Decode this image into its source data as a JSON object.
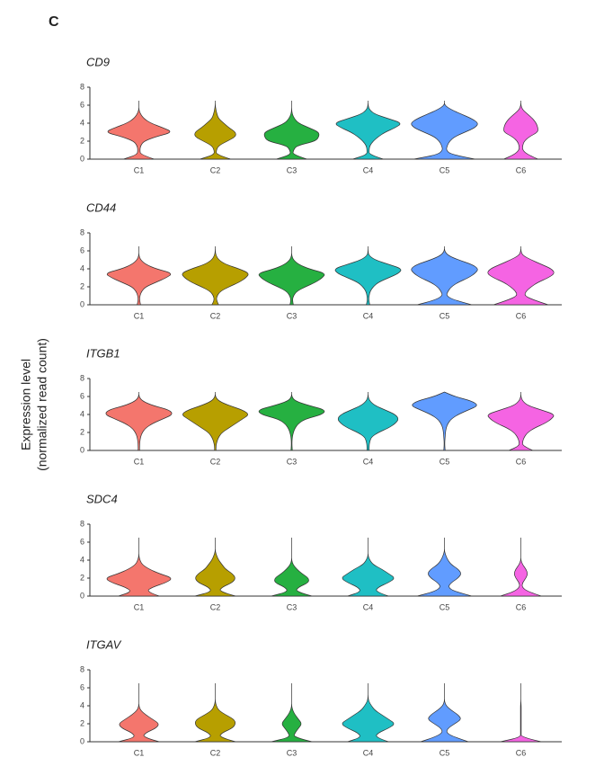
{
  "panel_label": "C",
  "y_label": [
    "Expression level",
    "(normalized read count)"
  ],
  "chart_data": [
    {
      "type": "violin",
      "title": "CD9",
      "categories": [
        "C1",
        "C2",
        "C3",
        "C4",
        "C5",
        "C6"
      ],
      "colors": [
        "#f4766d",
        "#b79f00",
        "#26b041",
        "#1fbfc4",
        "#619cff",
        "#f564e3"
      ],
      "ylim": [
        0,
        8
      ],
      "yticks": [
        0,
        2,
        4,
        6,
        8
      ],
      "density_y": [
        0,
        0.5,
        1,
        1.5,
        2,
        2.5,
        3,
        3.5,
        4,
        4.5,
        5,
        5.5,
        6,
        6.5
      ],
      "densities": [
        [
          0.45,
          0.05,
          0.03,
          0.05,
          0.15,
          0.5,
          1,
          0.7,
          0.35,
          0.15,
          0.05,
          0,
          0,
          0
        ],
        [
          0.45,
          0.03,
          0.03,
          0.1,
          0.35,
          0.6,
          0.6,
          0.4,
          0.25,
          0.1,
          0.05,
          0.02,
          0,
          0
        ],
        [
          0.45,
          0.03,
          0.05,
          0.15,
          0.7,
          0.8,
          0.8,
          0.5,
          0.2,
          0.08,
          0.02,
          0,
          0,
          0
        ],
        [
          0.45,
          0.03,
          0.03,
          0.05,
          0.15,
          0.3,
          0.5,
          0.8,
          1,
          0.6,
          0.2,
          0.04,
          0,
          0
        ],
        [
          0.9,
          0.2,
          0.05,
          0.08,
          0.15,
          0.3,
          0.6,
          0.9,
          1,
          0.8,
          0.5,
          0.2,
          0,
          0
        ],
        [
          0.5,
          0.2,
          0.05,
          0.05,
          0.1,
          0.25,
          0.5,
          0.5,
          0.45,
          0.35,
          0.2,
          0.05,
          0,
          0
        ]
      ]
    },
    {
      "type": "violin",
      "title": "CD44",
      "categories": [
        "C1",
        "C2",
        "C3",
        "C4",
        "C5",
        "C6"
      ],
      "colors": [
        "#f4766d",
        "#b79f00",
        "#26b041",
        "#1fbfc4",
        "#619cff",
        "#f564e3"
      ],
      "ylim": [
        0,
        8
      ],
      "yticks": [
        0,
        2,
        4,
        6,
        8
      ],
      "density_y": [
        0,
        0.5,
        1,
        1.5,
        2,
        2.5,
        3,
        3.5,
        4,
        4.5,
        5,
        5.5,
        6,
        6.5
      ],
      "densities": [
        [
          0.05,
          0.02,
          0.03,
          0.08,
          0.2,
          0.5,
          0.8,
          1,
          0.5,
          0.2,
          0.05,
          0,
          0,
          0
        ],
        [
          0.1,
          0.03,
          0.05,
          0.15,
          0.4,
          0.7,
          0.9,
          1,
          0.7,
          0.3,
          0.1,
          0.02,
          0,
          0
        ],
        [
          0.05,
          0.02,
          0.05,
          0.15,
          0.4,
          0.7,
          0.9,
          1,
          0.5,
          0.2,
          0.05,
          0,
          0,
          0
        ],
        [
          0.05,
          0.02,
          0.03,
          0.06,
          0.15,
          0.3,
          0.6,
          0.9,
          1,
          0.6,
          0.2,
          0.02,
          0,
          0
        ],
        [
          0.8,
          0.3,
          0.05,
          0.1,
          0.2,
          0.4,
          0.7,
          0.9,
          1,
          0.8,
          0.4,
          0.1,
          0,
          0
        ],
        [
          0.8,
          0.4,
          0.1,
          0.15,
          0.3,
          0.5,
          0.8,
          1,
          0.9,
          0.6,
          0.3,
          0.05,
          0,
          0
        ]
      ]
    },
    {
      "type": "violin",
      "title": "ITGB1",
      "categories": [
        "C1",
        "C2",
        "C3",
        "C4",
        "C5",
        "C6"
      ],
      "colors": [
        "#f4766d",
        "#b79f00",
        "#26b041",
        "#1fbfc4",
        "#619cff",
        "#f564e3"
      ],
      "ylim": [
        0,
        8
      ],
      "yticks": [
        0,
        2,
        4,
        6,
        8
      ],
      "density_y": [
        0,
        0.5,
        1,
        1.5,
        2,
        2.5,
        3,
        3.5,
        4,
        4.5,
        5,
        5.5,
        6,
        6.5
      ],
      "densities": [
        [
          0.02,
          0.02,
          0.03,
          0.05,
          0.1,
          0.2,
          0.4,
          0.7,
          1,
          0.9,
          0.4,
          0.1,
          0,
          0
        ],
        [
          0.02,
          0.02,
          0.05,
          0.1,
          0.2,
          0.4,
          0.6,
          0.8,
          1,
          0.8,
          0.4,
          0.1,
          0,
          0
        ],
        [
          0.02,
          0.01,
          0.01,
          0.02,
          0.05,
          0.1,
          0.2,
          0.4,
          0.9,
          1,
          0.5,
          0.1,
          0,
          0
        ],
        [
          0.03,
          0.03,
          0.05,
          0.1,
          0.3,
          0.6,
          0.8,
          0.9,
          0.8,
          0.5,
          0.2,
          0.05,
          0,
          0
        ],
        [
          0.02,
          0.01,
          0.01,
          0.02,
          0.03,
          0.05,
          0.1,
          0.2,
          0.4,
          0.7,
          1,
          0.8,
          0.3,
          0
        ],
        [
          0.35,
          0.05,
          0.05,
          0.1,
          0.2,
          0.4,
          0.7,
          0.9,
          1,
          0.6,
          0.2,
          0.05,
          0,
          0
        ]
      ]
    },
    {
      "type": "violin",
      "title": "SDC4",
      "categories": [
        "C1",
        "C2",
        "C3",
        "C4",
        "C5",
        "C6"
      ],
      "colors": [
        "#f4766d",
        "#b79f00",
        "#26b041",
        "#1fbfc4",
        "#619cff",
        "#f564e3"
      ],
      "ylim": [
        0,
        8
      ],
      "yticks": [
        0,
        2,
        4,
        6,
        8
      ],
      "density_y": [
        0,
        0.5,
        1,
        1.5,
        2,
        2.5,
        3,
        3.5,
        4,
        4.5,
        5,
        5.5,
        6,
        6.5
      ],
      "densities": [
        [
          0.6,
          0.2,
          0.4,
          0.8,
          1,
          0.6,
          0.3,
          0.1,
          0.03,
          0,
          0,
          0,
          0,
          0
        ],
        [
          0.6,
          0.1,
          0.2,
          0.5,
          0.6,
          0.5,
          0.3,
          0.2,
          0.1,
          0.04,
          0,
          0,
          0,
          0
        ],
        [
          0.6,
          0.1,
          0.2,
          0.5,
          0.5,
          0.3,
          0.15,
          0.04,
          0,
          0,
          0,
          0,
          0,
          0
        ],
        [
          0.6,
          0.2,
          0.3,
          0.6,
          0.8,
          0.6,
          0.4,
          0.15,
          0.05,
          0,
          0,
          0,
          0,
          0
        ],
        [
          0.8,
          0.3,
          0.1,
          0.2,
          0.4,
          0.5,
          0.4,
          0.2,
          0.1,
          0.04,
          0,
          0,
          0,
          0
        ],
        [
          0.6,
          0.2,
          0.03,
          0.05,
          0.15,
          0.2,
          0.15,
          0.05,
          0,
          0,
          0,
          0,
          0,
          0
        ]
      ]
    },
    {
      "type": "violin",
      "title": "ITGAV",
      "categories": [
        "C1",
        "C2",
        "C3",
        "C4",
        "C5",
        "C6"
      ],
      "colors": [
        "#f4766d",
        "#b79f00",
        "#26b041",
        "#1fbfc4",
        "#619cff",
        "#f564e3"
      ],
      "ylim": [
        0,
        8
      ],
      "yticks": [
        0,
        2,
        4,
        6,
        8
      ],
      "density_y": [
        0,
        0.5,
        1,
        1.5,
        2,
        2.5,
        3,
        3.5,
        4,
        4.5,
        5,
        5.5,
        6,
        6.5
      ],
      "densities": [
        [
          0.6,
          0.1,
          0.2,
          0.5,
          0.6,
          0.4,
          0.2,
          0.05,
          0,
          0,
          0,
          0,
          0,
          0
        ],
        [
          0.6,
          0.1,
          0.2,
          0.5,
          0.6,
          0.55,
          0.3,
          0.1,
          0.03,
          0,
          0,
          0,
          0,
          0
        ],
        [
          0.6,
          0.05,
          0.1,
          0.2,
          0.3,
          0.2,
          0.1,
          0.03,
          0,
          0,
          0,
          0,
          0,
          0
        ],
        [
          0.6,
          0.2,
          0.3,
          0.6,
          0.8,
          0.6,
          0.4,
          0.2,
          0.1,
          0.02,
          0,
          0,
          0,
          0
        ],
        [
          0.7,
          0.3,
          0.05,
          0.1,
          0.3,
          0.5,
          0.4,
          0.2,
          0.05,
          0,
          0,
          0,
          0,
          0
        ],
        [
          0.6,
          0.01,
          0.01,
          0.01,
          0.01,
          0.01,
          0.01,
          0.01,
          0.01,
          0,
          0,
          0,
          0,
          0
        ]
      ]
    }
  ]
}
